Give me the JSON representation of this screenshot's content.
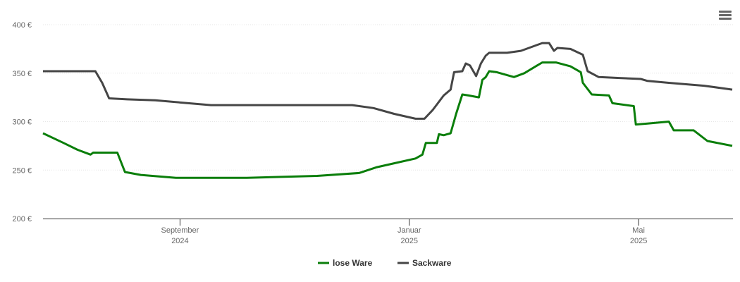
{
  "chart_data": {
    "type": "line",
    "xlim": [
      2024.468,
      2025.47
    ],
    "xticks": [
      {
        "value": 2024.667,
        "label": [
          "September",
          "2024"
        ]
      },
      {
        "value": 2025.0,
        "label": [
          "Januar",
          "2025"
        ]
      },
      {
        "value": 2025.333,
        "label": [
          "Mai",
          "2025"
        ]
      }
    ],
    "ylim": [
      200,
      400
    ],
    "yticks": [
      {
        "value": 200,
        "label": "200 €"
      },
      {
        "value": 250,
        "label": "250 €"
      },
      {
        "value": 300,
        "label": "300 €"
      },
      {
        "value": 350,
        "label": "350 €"
      },
      {
        "value": 400,
        "label": "400 €"
      }
    ],
    "grid": true,
    "legend": "bottom",
    "series": [
      {
        "name": "lose Ware",
        "color": "#0a7e0a",
        "x": [
          2024.468,
          2024.498,
          2024.518,
          2024.537,
          2024.541,
          2024.576,
          2024.587,
          2024.61,
          2024.661,
          2024.764,
          2024.866,
          2024.927,
          2024.953,
          2024.978,
          2025.009,
          2025.019,
          2025.024,
          2025.04,
          2025.043,
          2025.05,
          2025.06,
          2025.068,
          2025.077,
          2025.086,
          2025.101,
          2025.106,
          2025.111,
          2025.116,
          2025.127,
          2025.152,
          2025.167,
          2025.193,
          2025.213,
          2025.234,
          2025.249,
          2025.252,
          2025.265,
          2025.29,
          2025.295,
          2025.326,
          2025.329,
          2025.346,
          2025.377,
          2025.384,
          2025.413,
          2025.433,
          2025.469
        ],
        "values": [
          288,
          278,
          271,
          266,
          268,
          268,
          248,
          245,
          242,
          242,
          244,
          247,
          253,
          257,
          262,
          266,
          278,
          278,
          287,
          286,
          288,
          308,
          328,
          327,
          325,
          343,
          346,
          352,
          351,
          346,
          350,
          361,
          361,
          357,
          351,
          340,
          328,
          327,
          319,
          316,
          297,
          298,
          300,
          291,
          291,
          280,
          275
        ]
      },
      {
        "name": "Sackware",
        "color": "#454545",
        "x": [
          2024.468,
          2024.544,
          2024.554,
          2024.564,
          2024.59,
          2024.631,
          2024.712,
          2024.815,
          2024.917,
          2024.948,
          2024.978,
          2025.009,
          2025.022,
          2025.034,
          2025.05,
          2025.06,
          2025.065,
          2025.077,
          2025.082,
          2025.088,
          2025.097,
          2025.104,
          2025.111,
          2025.116,
          2025.142,
          2025.162,
          2025.193,
          2025.203,
          2025.21,
          2025.215,
          2025.234,
          2025.252,
          2025.259,
          2025.275,
          2025.305,
          2025.336,
          2025.346,
          2025.377,
          2025.428,
          2025.469
        ],
        "values": [
          352,
          352,
          340,
          324,
          323,
          322,
          317,
          317,
          317,
          314,
          308,
          303,
          303,
          312,
          327,
          333,
          351,
          352,
          360,
          358,
          347,
          360,
          368,
          371,
          371,
          373,
          381,
          381,
          373,
          376,
          375,
          369,
          352,
          346,
          345,
          344,
          342,
          340,
          337,
          333
        ]
      }
    ]
  }
}
